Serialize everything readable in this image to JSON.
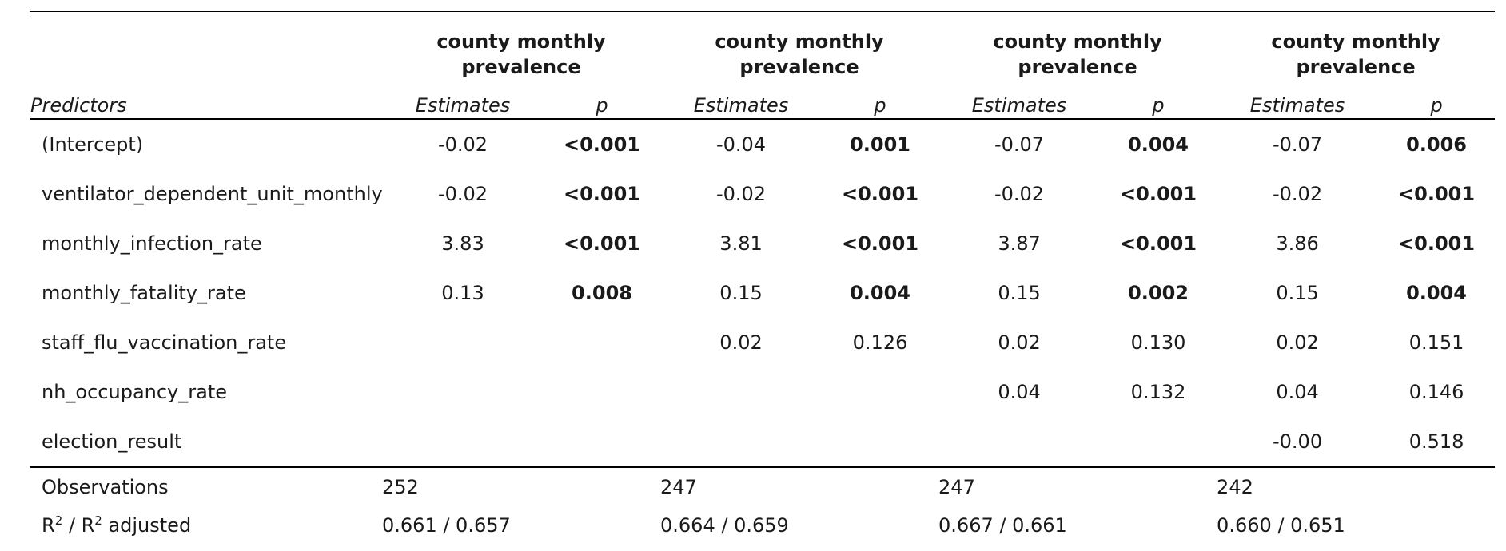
{
  "header": {
    "model_titles": [
      "county monthly prevalence",
      "county monthly prevalence",
      "county monthly prevalence",
      "county monthly prevalence"
    ],
    "predictors_label": "Predictors",
    "estimates_label": "Estimates",
    "p_label": "p"
  },
  "rows": [
    {
      "label": "(Intercept)",
      "cells": [
        {
          "est": "-0.02",
          "p": "<0.001",
          "bold": true
        },
        {
          "est": "-0.04",
          "p": "0.001",
          "bold": true
        },
        {
          "est": "-0.07",
          "p": "0.004",
          "bold": true
        },
        {
          "est": "-0.07",
          "p": "0.006",
          "bold": true
        }
      ]
    },
    {
      "label": "ventilator_dependent_unit_monthly",
      "cells": [
        {
          "est": "-0.02",
          "p": "<0.001",
          "bold": true
        },
        {
          "est": "-0.02",
          "p": "<0.001",
          "bold": true
        },
        {
          "est": "-0.02",
          "p": "<0.001",
          "bold": true
        },
        {
          "est": "-0.02",
          "p": "<0.001",
          "bold": true
        }
      ]
    },
    {
      "label": "monthly_infection_rate",
      "cells": [
        {
          "est": "3.83",
          "p": "<0.001",
          "bold": true
        },
        {
          "est": "3.81",
          "p": "<0.001",
          "bold": true
        },
        {
          "est": "3.87",
          "p": "<0.001",
          "bold": true
        },
        {
          "est": "3.86",
          "p": "<0.001",
          "bold": true
        }
      ]
    },
    {
      "label": "monthly_fatality_rate",
      "cells": [
        {
          "est": "0.13",
          "p": "0.008",
          "bold": true
        },
        {
          "est": "0.15",
          "p": "0.004",
          "bold": true
        },
        {
          "est": "0.15",
          "p": "0.002",
          "bold": true
        },
        {
          "est": "0.15",
          "p": "0.004",
          "bold": true
        }
      ]
    },
    {
      "label": "staff_flu_vaccination_rate",
      "cells": [
        {
          "est": "",
          "p": "",
          "bold": false
        },
        {
          "est": "0.02",
          "p": "0.126",
          "bold": false
        },
        {
          "est": "0.02",
          "p": "0.130",
          "bold": false
        },
        {
          "est": "0.02",
          "p": "0.151",
          "bold": false
        }
      ]
    },
    {
      "label": "nh_occupancy_rate",
      "cells": [
        {
          "est": "",
          "p": "",
          "bold": false
        },
        {
          "est": "",
          "p": "",
          "bold": false
        },
        {
          "est": "0.04",
          "p": "0.132",
          "bold": false
        },
        {
          "est": "0.04",
          "p": "0.146",
          "bold": false
        }
      ]
    },
    {
      "label": "election_result",
      "cells": [
        {
          "est": "",
          "p": "",
          "bold": false
        },
        {
          "est": "",
          "p": "",
          "bold": false
        },
        {
          "est": "",
          "p": "",
          "bold": false
        },
        {
          "est": "-0.00",
          "p": "0.518",
          "bold": false
        }
      ]
    }
  ],
  "footer": {
    "observations_label": "Observations",
    "observations": [
      "252",
      "247",
      "247",
      "242"
    ],
    "r2_base": "R",
    "r2_sup": "2",
    "r2_sep": " / ",
    "r2_suffix": " adjusted",
    "r2_values": [
      "0.661 / 0.657",
      "0.664 / 0.659",
      "0.667 / 0.661",
      "0.660 / 0.651"
    ]
  }
}
